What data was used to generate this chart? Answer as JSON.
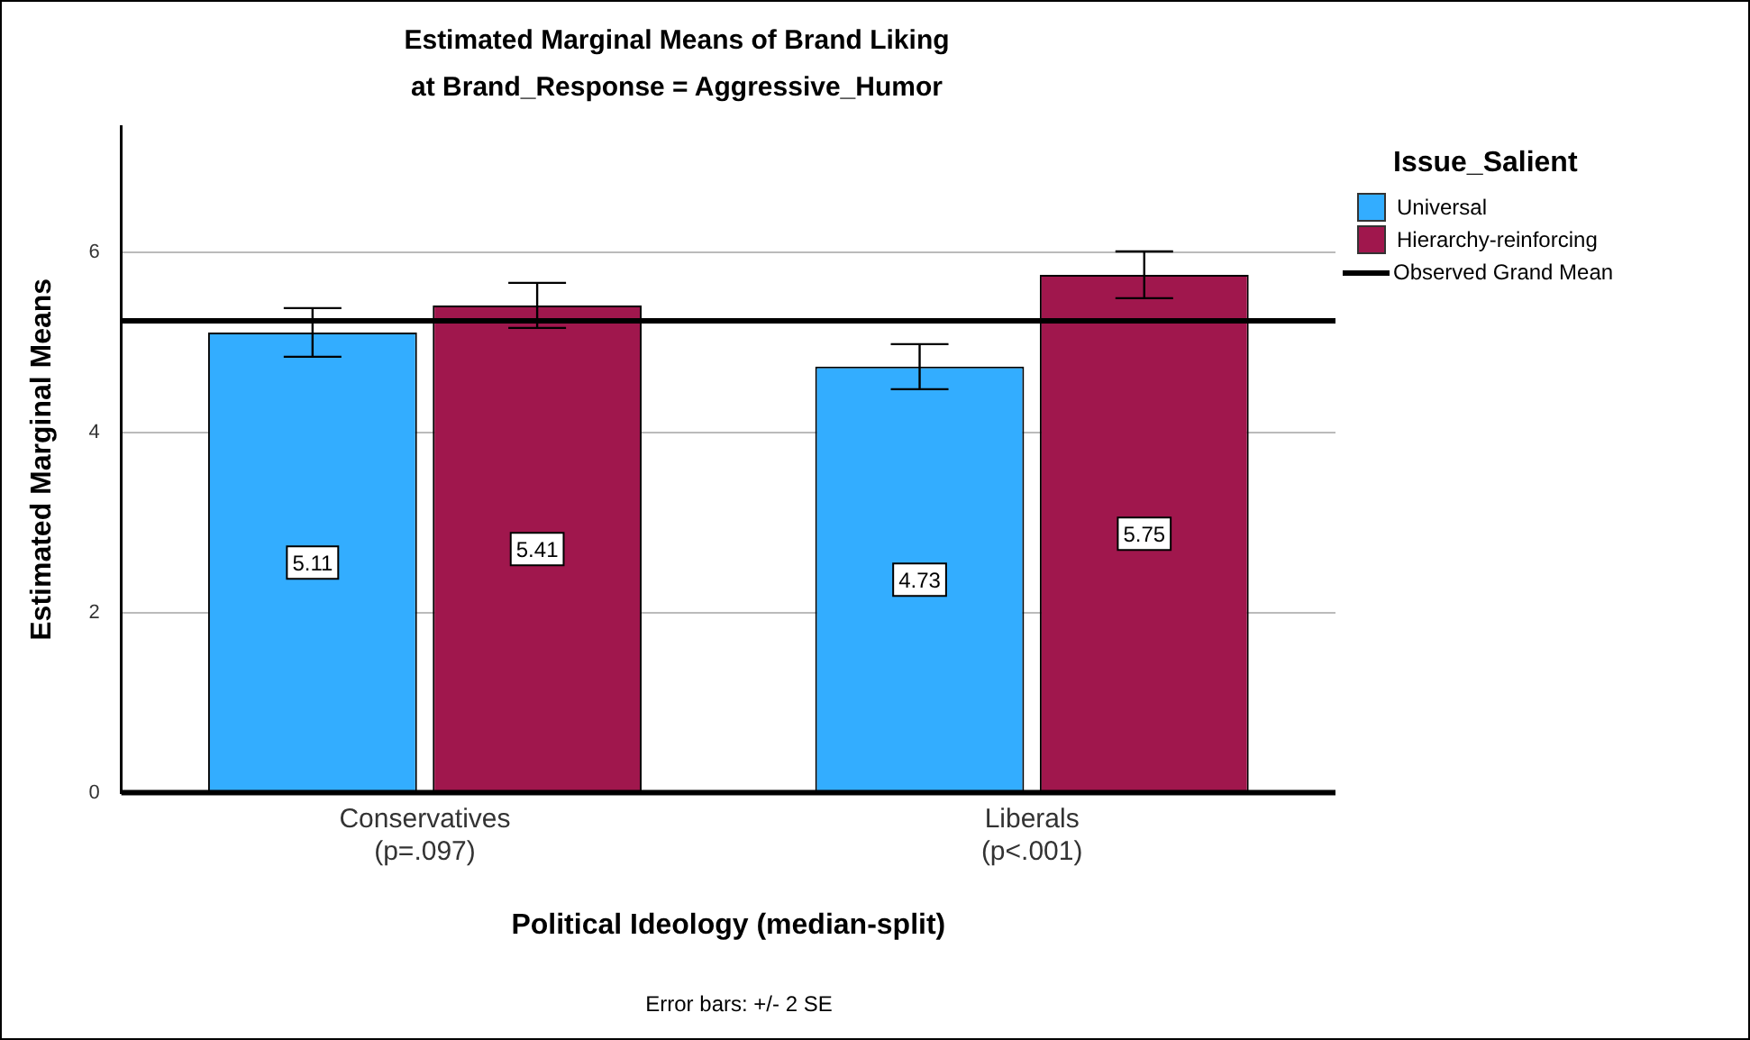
{
  "chart_data": {
    "type": "bar",
    "title": "Estimated Marginal Means of Brand Liking",
    "subtitle": "at Brand_Response = Aggressive_Humor",
    "xlabel": "Political Ideology (median-split)",
    "ylabel": "Estimated Marginal Means",
    "legend_title": "Issue_Salient",
    "categories": [
      "Conservatives\n(p=.097)",
      "Liberals\n(p<.001)"
    ],
    "series": [
      {
        "name": "Universal",
        "color": "#33adff",
        "values": [
          5.11,
          4.73
        ],
        "errors": [
          0.27,
          0.25
        ]
      },
      {
        "name": "Hierarchy-reinforcing",
        "color": "#a0174d",
        "values": [
          5.41,
          5.75
        ],
        "errors": [
          0.25,
          0.26
        ]
      }
    ],
    "ref_lines": [
      {
        "axis": "y",
        "value": 5.24,
        "label": "Observed Grand Mean",
        "color": "#000000"
      }
    ],
    "ylim": [
      0,
      7.4
    ],
    "yticks": [
      0,
      2,
      4,
      6
    ],
    "grid": "y",
    "legend": "top right",
    "data_labels": true,
    "annotations": [
      "Error bars: +/- 2 SE"
    ]
  }
}
